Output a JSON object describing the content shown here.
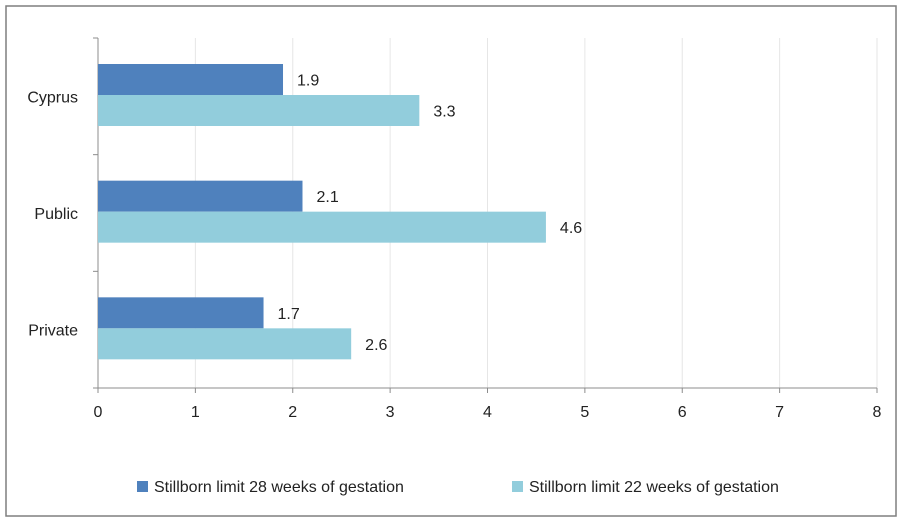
{
  "chart_data": {
    "type": "bar",
    "orientation": "horizontal",
    "categories": [
      "Cyprus",
      "Public",
      "Private"
    ],
    "series": [
      {
        "name": "Stillborn limit 28 weeks of gestation",
        "values": [
          1.9,
          2.1,
          1.7
        ],
        "color": "#4f81bd"
      },
      {
        "name": "Stillborn limit 22 weeks of gestation",
        "values": [
          3.3,
          4.6,
          2.6
        ],
        "color": "#92cddc"
      }
    ],
    "x_ticks": [
      "0",
      "1",
      "2",
      "3",
      "4",
      "5",
      "6",
      "7",
      "8"
    ],
    "xlim": [
      0,
      8
    ],
    "title": "",
    "xlabel": "",
    "ylabel": "",
    "grid": "vertical",
    "legend_position": "bottom"
  },
  "colors": {
    "frame": "#7f7f7f",
    "grid": "#e6e6e6",
    "axis": "#8c8c8c"
  }
}
